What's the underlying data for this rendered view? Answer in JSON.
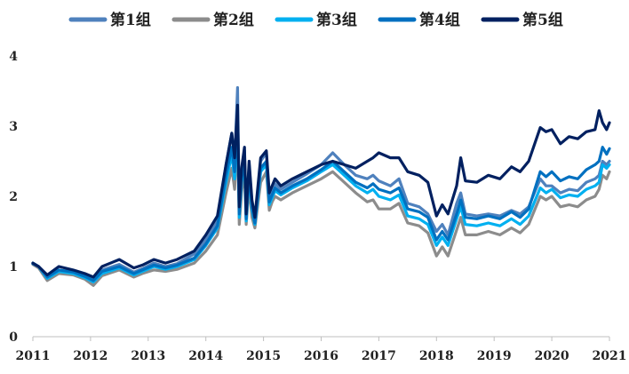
{
  "chart_data": {
    "type": "line",
    "title": "",
    "xlabel": "",
    "ylabel": "",
    "ylim": [
      0,
      4
    ],
    "yticks": [
      0,
      1,
      2,
      3,
      4
    ],
    "xlim": [
      2011.0,
      2021.0
    ],
    "xticks": [
      "2011",
      "2012",
      "2013",
      "2014",
      "2015",
      "2016",
      "2017",
      "2018",
      "2019",
      "2020",
      "2021"
    ],
    "legend_position": "top",
    "grid": false,
    "x": [
      2011.0,
      2011.1,
      2011.25,
      2011.45,
      2011.7,
      2011.9,
      2012.05,
      2012.2,
      2012.5,
      2012.75,
      2012.9,
      2013.1,
      2013.3,
      2013.5,
      2013.8,
      2014.0,
      2014.2,
      2014.35,
      2014.45,
      2014.5,
      2014.55,
      2014.58,
      2014.62,
      2014.67,
      2014.7,
      2014.75,
      2014.8,
      2014.85,
      2014.95,
      2015.05,
      2015.1,
      2015.15,
      2015.2,
      2015.3,
      2015.5,
      2015.75,
      2016.0,
      2016.2,
      2016.4,
      2016.6,
      2016.8,
      2016.9,
      2017.0,
      2017.2,
      2017.35,
      2017.5,
      2017.7,
      2017.85,
      2018.0,
      2018.1,
      2018.2,
      2018.35,
      2018.42,
      2018.5,
      2018.7,
      2018.9,
      2019.1,
      2019.3,
      2019.45,
      2019.6,
      2019.8,
      2019.9,
      2020.0,
      2020.15,
      2020.3,
      2020.45,
      2020.6,
      2020.75,
      2020.82,
      2020.88,
      2020.95,
      2021.0
    ],
    "series": [
      {
        "name": "第1组",
        "color": "#4f81bd",
        "values": [
          1.04,
          1.0,
          0.84,
          0.95,
          0.92,
          0.87,
          0.82,
          0.95,
          1.03,
          0.92,
          0.97,
          1.05,
          1.0,
          1.04,
          1.18,
          1.38,
          1.65,
          2.45,
          2.9,
          2.5,
          3.55,
          1.8,
          2.3,
          2.65,
          1.7,
          2.45,
          1.9,
          1.65,
          2.5,
          2.62,
          1.95,
          2.05,
          2.18,
          2.1,
          2.2,
          2.32,
          2.45,
          2.62,
          2.45,
          2.3,
          2.25,
          2.3,
          2.22,
          2.15,
          2.25,
          1.9,
          1.85,
          1.75,
          1.5,
          1.6,
          1.45,
          1.9,
          2.05,
          1.75,
          1.72,
          1.75,
          1.72,
          1.8,
          1.75,
          1.85,
          2.25,
          2.15,
          2.15,
          2.05,
          2.1,
          2.08,
          2.2,
          2.25,
          2.3,
          2.5,
          2.45,
          2.5
        ]
      },
      {
        "name": "第2组",
        "color": "#8c8c8c",
        "values": [
          1.03,
          0.98,
          0.8,
          0.9,
          0.88,
          0.82,
          0.73,
          0.87,
          0.95,
          0.85,
          0.9,
          0.95,
          0.93,
          0.96,
          1.05,
          1.22,
          1.45,
          2.05,
          2.4,
          2.1,
          2.85,
          1.6,
          2.05,
          2.4,
          1.6,
          2.15,
          1.7,
          1.55,
          2.2,
          2.35,
          1.8,
          1.92,
          2.0,
          1.95,
          2.05,
          2.15,
          2.25,
          2.35,
          2.2,
          2.05,
          1.92,
          1.95,
          1.82,
          1.82,
          1.9,
          1.62,
          1.58,
          1.48,
          1.15,
          1.28,
          1.15,
          1.52,
          1.7,
          1.45,
          1.45,
          1.5,
          1.45,
          1.55,
          1.48,
          1.6,
          2.0,
          1.95,
          2.0,
          1.85,
          1.88,
          1.85,
          1.95,
          2.0,
          2.1,
          2.3,
          2.25,
          2.35
        ]
      },
      {
        "name": "第3组",
        "color": "#00b0f0",
        "values": [
          1.05,
          1.0,
          0.83,
          0.93,
          0.9,
          0.84,
          0.78,
          0.9,
          0.98,
          0.88,
          0.93,
          1.0,
          0.96,
          1.0,
          1.1,
          1.3,
          1.55,
          2.2,
          2.6,
          2.25,
          3.05,
          1.7,
          2.2,
          2.5,
          1.65,
          2.3,
          1.8,
          1.6,
          2.35,
          2.45,
          1.88,
          1.98,
          2.08,
          2.02,
          2.12,
          2.22,
          2.35,
          2.45,
          2.3,
          2.15,
          2.05,
          2.1,
          2.0,
          1.95,
          2.02,
          1.72,
          1.68,
          1.6,
          1.3,
          1.42,
          1.3,
          1.68,
          1.85,
          1.6,
          1.58,
          1.62,
          1.58,
          1.68,
          1.6,
          1.72,
          2.12,
          2.05,
          2.1,
          1.98,
          2.02,
          2.0,
          2.1,
          2.15,
          2.2,
          2.45,
          2.4,
          2.45
        ]
      },
      {
        "name": "第4组",
        "color": "#0070c0",
        "values": [
          1.04,
          1.0,
          0.85,
          0.95,
          0.92,
          0.86,
          0.8,
          0.93,
          1.0,
          0.9,
          0.95,
          1.02,
          0.98,
          1.02,
          1.12,
          1.32,
          1.58,
          2.3,
          2.7,
          2.35,
          3.15,
          1.75,
          2.25,
          2.55,
          1.68,
          2.35,
          1.85,
          1.62,
          2.4,
          2.5,
          1.92,
          2.02,
          2.12,
          2.05,
          2.15,
          2.25,
          2.38,
          2.5,
          2.35,
          2.2,
          2.12,
          2.18,
          2.1,
          2.05,
          2.12,
          1.82,
          1.78,
          1.7,
          1.38,
          1.5,
          1.38,
          1.75,
          1.95,
          1.7,
          1.68,
          1.72,
          1.68,
          1.78,
          1.7,
          1.82,
          2.35,
          2.28,
          2.35,
          2.22,
          2.28,
          2.25,
          2.38,
          2.45,
          2.5,
          2.7,
          2.6,
          2.68
        ]
      },
      {
        "name": "第5组",
        "color": "#002060",
        "values": [
          1.05,
          1.0,
          0.88,
          1.0,
          0.95,
          0.9,
          0.85,
          1.0,
          1.1,
          0.98,
          1.02,
          1.1,
          1.05,
          1.1,
          1.22,
          1.45,
          1.72,
          2.45,
          2.9,
          2.55,
          3.3,
          1.85,
          2.4,
          2.7,
          1.75,
          2.5,
          1.95,
          1.7,
          2.55,
          2.65,
          2.05,
          2.15,
          2.25,
          2.15,
          2.25,
          2.35,
          2.45,
          2.5,
          2.45,
          2.4,
          2.5,
          2.55,
          2.62,
          2.55,
          2.55,
          2.35,
          2.3,
          2.2,
          1.72,
          1.88,
          1.75,
          2.15,
          2.55,
          2.22,
          2.2,
          2.3,
          2.25,
          2.42,
          2.35,
          2.5,
          2.98,
          2.92,
          2.95,
          2.75,
          2.85,
          2.82,
          2.92,
          2.95,
          3.22,
          3.05,
          2.95,
          3.05
        ]
      }
    ]
  }
}
